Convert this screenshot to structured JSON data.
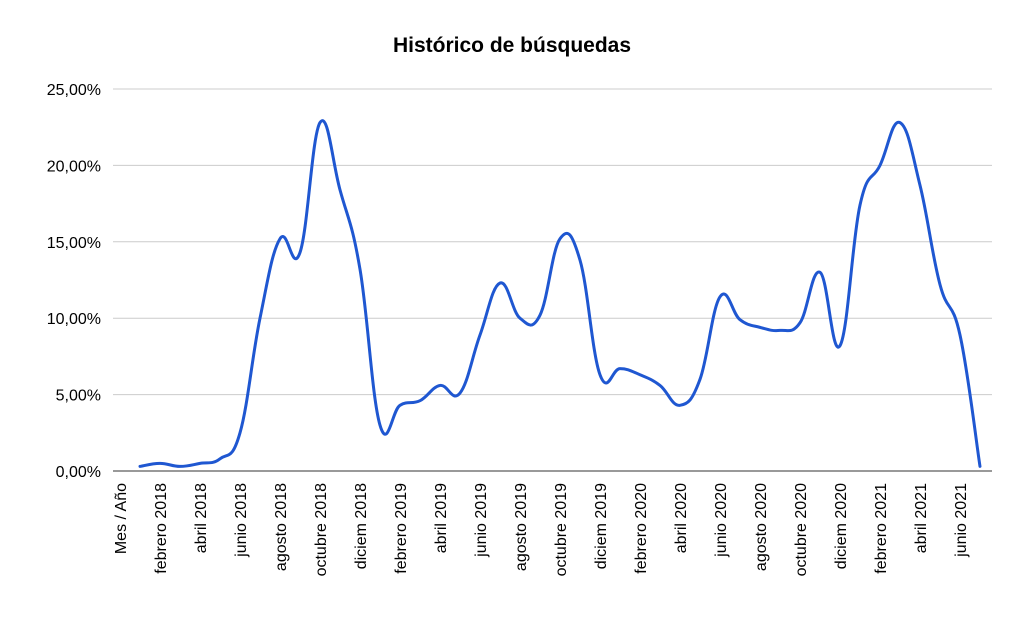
{
  "chart_data": {
    "type": "line",
    "title": "Histórico de búsquedas",
    "categories": [
      "Mes / Año",
      null,
      "febrero 2018",
      null,
      "abril 2018",
      null,
      "junio 2018",
      null,
      "agosto 2018",
      null,
      "octubre 2018",
      null,
      "diciem 2018",
      null,
      "febrero 2019",
      null,
      "abril 2019",
      null,
      "junio 2019",
      null,
      "agosto 2019",
      null,
      "octubre 2019",
      null,
      "diciem 2019",
      null,
      "febrero 2020",
      null,
      "abril 2020",
      null,
      "junio 2020",
      null,
      "agosto 2020",
      null,
      "octubre 2020",
      null,
      "diciem 2020",
      null,
      "febrero 2021",
      null,
      "abril 2021",
      null,
      "junio 2021",
      null
    ],
    "series": [
      {
        "color": "#1f57d1",
        "values": [
          null,
          0.3,
          0.5,
          0.3,
          0.5,
          0.8,
          2.5,
          10.0,
          15.2,
          14.3,
          22.8,
          18.4,
          13.2,
          3.0,
          4.3,
          4.6,
          5.6,
          5.1,
          8.9,
          12.3,
          10.0,
          10.2,
          15.2,
          13.8,
          6.3,
          6.7,
          6.3,
          5.6,
          4.3,
          6.0,
          11.4,
          9.9,
          9.4,
          9.2,
          9.7,
          13.0,
          8.2,
          17.4,
          20.0,
          22.8,
          18.7,
          12.2,
          8.9,
          0.3
        ]
      }
    ],
    "ylim": [
      0,
      25
    ],
    "yticks": [
      {
        "value": 0,
        "label": "0,00%"
      },
      {
        "value": 5,
        "label": "5,00%"
      },
      {
        "value": 10,
        "label": "10,00%"
      },
      {
        "value": 15,
        "label": "15,00%"
      },
      {
        "value": 20,
        "label": "20,00%"
      },
      {
        "value": 25,
        "label": "25,00%"
      }
    ],
    "grid": true
  }
}
